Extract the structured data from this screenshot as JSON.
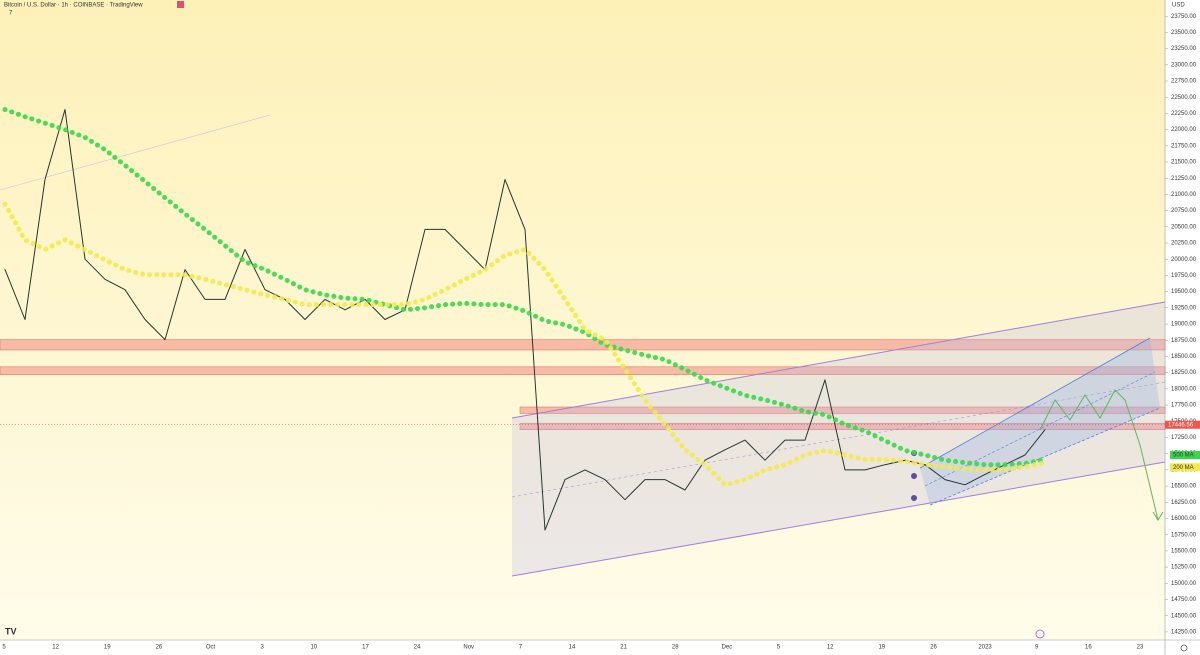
{
  "chart_data": {
    "type": "line",
    "title": "Bitcoin / U.S. Dollar · 1h · COINBASE · TradingView",
    "indicator_count": 7,
    "currency": "USD",
    "x_labels": [
      "5",
      "12",
      "19",
      "26",
      "Oct",
      "3",
      "10",
      "17",
      "24",
      "Nov",
      "7",
      "14",
      "21",
      "28",
      "Dec",
      "5",
      "12",
      "19",
      "26",
      "2023",
      "9",
      "16",
      "23"
    ],
    "series": [
      {
        "name": "Price",
        "color": "#26352f",
        "values": [
          19840,
          19070,
          21230,
          22310,
          20000,
          19690,
          19530,
          19070,
          18760,
          19840,
          19380,
          19380,
          20150,
          19530,
          19380,
          19070,
          19380,
          19220,
          19380,
          19070,
          19220,
          20460,
          20460,
          20150,
          19840,
          21230,
          20460,
          15820,
          16600,
          16750,
          16600,
          16290,
          16600,
          16600,
          16440,
          16900,
          17060,
          17210,
          16900,
          17210,
          17210,
          18140,
          16750,
          16750,
          16830,
          16900,
          16830,
          16600,
          16520,
          16680,
          16830,
          16980,
          17370
        ]
      },
      {
        "name": "500 MA",
        "color": "#39d84a",
        "values": [
          22310,
          22200,
          22100,
          22000,
          21880,
          21690,
          21450,
          21200,
          20950,
          20700,
          20460,
          20210,
          19960,
          19840,
          19690,
          19530,
          19450,
          19400,
          19380,
          19300,
          19220,
          19250,
          19300,
          19320,
          19300,
          19300,
          19200,
          19050,
          18990,
          18870,
          18680,
          18600,
          18520,
          18450,
          18300,
          18140,
          18020,
          17900,
          17830,
          17750,
          17650,
          17600,
          17450,
          17350,
          17200,
          17050,
          16980,
          16900,
          16860,
          16830,
          16830,
          16850,
          16910
        ]
      },
      {
        "name": "200 MA",
        "color": "#f4e94a",
        "values": [
          20850,
          20300,
          20150,
          20300,
          20150,
          19990,
          19840,
          19760,
          19760,
          19760,
          19690,
          19610,
          19530,
          19450,
          19380,
          19300,
          19300,
          19300,
          19300,
          19300,
          19300,
          19380,
          19530,
          19690,
          19840,
          20060,
          20150,
          19840,
          19380,
          18910,
          18760,
          18300,
          17830,
          17450,
          17060,
          16830,
          16520,
          16600,
          16750,
          16830,
          16980,
          17050,
          16980,
          16910,
          16910,
          16880,
          16830,
          16800,
          16760,
          16750,
          16750,
          16800,
          16860
        ]
      }
    ],
    "zones": [
      {
        "from": 18600,
        "to": 18760
      },
      {
        "from": 18220,
        "to": 18340
      },
      {
        "from": 17620,
        "to": 17720
      },
      {
        "from": 17370,
        "to": 17470
      }
    ],
    "zone_color": "#f08a80",
    "last_price": 17446.56,
    "last_price_color": "#f0544c",
    "ylim": [
      14125,
      24000
    ],
    "yticks": [
      {
        "value": 14250,
        "label": "14250.00"
      },
      {
        "value": 14500,
        "label": "14500.00"
      },
      {
        "value": 14750,
        "label": "14750.00"
      },
      {
        "value": 15000,
        "label": "15000.00"
      },
      {
        "value": 15250,
        "label": "15250.00"
      },
      {
        "value": 15500,
        "label": "15500.00"
      },
      {
        "value": 15750,
        "label": "15750.00"
      },
      {
        "value": 16000,
        "label": "16000.00"
      },
      {
        "value": 16250,
        "label": "16250.00"
      },
      {
        "value": 16500,
        "label": "16500.00"
      },
      {
        "value": 16750,
        "label": "16750.00"
      },
      {
        "value": 17000,
        "label": "17000.00"
      },
      {
        "value": 17250,
        "label": "17250.00"
      },
      {
        "value": 17500,
        "label": "17500.00"
      },
      {
        "value": 17750,
        "label": "17750.00"
      },
      {
        "value": 18000,
        "label": "18000.00"
      },
      {
        "value": 18250,
        "label": "18250.00"
      },
      {
        "value": 18500,
        "label": "18500.00"
      },
      {
        "value": 18750,
        "label": "18750.00"
      },
      {
        "value": 19000,
        "label": "19000.00"
      },
      {
        "value": 19250,
        "label": "19250.00"
      },
      {
        "value": 19500,
        "label": "19500.00"
      },
      {
        "value": 19750,
        "label": "19750.00"
      },
      {
        "value": 20000,
        "label": "20000.00"
      },
      {
        "value": 20250,
        "label": "20250.00"
      },
      {
        "value": 20500,
        "label": "20500.00"
      },
      {
        "value": 20750,
        "label": "20750.00"
      },
      {
        "value": 21000,
        "label": "21000.00"
      },
      {
        "value": 21250,
        "label": "21250.00"
      },
      {
        "value": 21500,
        "label": "21500.00"
      },
      {
        "value": 21750,
        "label": "21750.00"
      },
      {
        "value": 22000,
        "label": "22000.00"
      },
      {
        "value": 22250,
        "label": "22250.00"
      },
      {
        "value": 22500,
        "label": "22500.00"
      },
      {
        "value": 22750,
        "label": "22750.00"
      },
      {
        "value": 23000,
        "label": "23000.00"
      },
      {
        "value": 23250,
        "label": "23250.00"
      },
      {
        "value": 23500,
        "label": "23500.00"
      },
      {
        "value": 23750,
        "label": "23750.00"
      }
    ]
  }
}
